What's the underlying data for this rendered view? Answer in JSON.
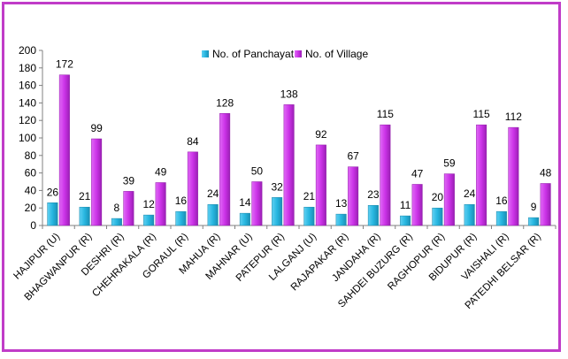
{
  "chart_data": {
    "type": "bar",
    "categories": [
      "HAJIPUR (U)",
      "BHAGWANPUR (R)",
      "DESHRI  (R)",
      "CHEHRAKALA  (R)",
      "GORAUL (R)",
      "MAHUA (R)",
      "MAHNAR (U)",
      "PATEPUR (R)",
      "LALGANJ (U)",
      "RAJAPAKAR (R)",
      "JANDAHA (R)",
      "SAHDEI BUZURG (R)",
      "RAGHOPUR (R)",
      "BIDUPUR (R)",
      "VAISHALI (R)",
      "PATEDHI BELSAR (R)"
    ],
    "series": [
      {
        "name": "No. of Panchayat",
        "color": "#27b6e0",
        "values": [
          26,
          21,
          8,
          12,
          16,
          24,
          14,
          32,
          21,
          13,
          23,
          11,
          20,
          24,
          16,
          9
        ]
      },
      {
        "name": "No. of Village",
        "color": "#cc33e8",
        "values": [
          172,
          99,
          39,
          49,
          84,
          128,
          50,
          138,
          92,
          67,
          115,
          47,
          59,
          115,
          112,
          48
        ]
      }
    ],
    "ylim": [
      0,
      200
    ],
    "yticks": [
      "0",
      "20",
      "40",
      "60",
      "80",
      "100",
      "120",
      "140",
      "160",
      "180",
      "200"
    ],
    "legend_position": "top",
    "grid": false
  }
}
